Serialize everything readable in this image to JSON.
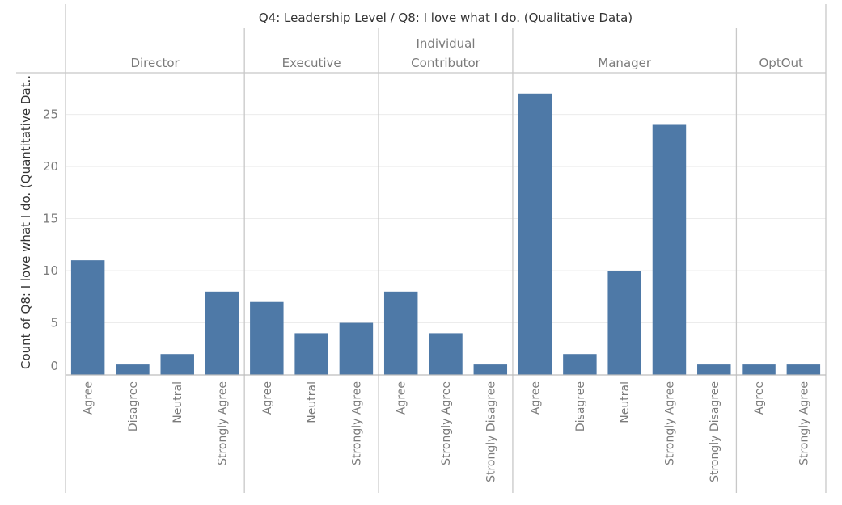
{
  "chart_data": {
    "type": "bar",
    "title": "Q4: Leadership Level  /  Q8: I love what I do. (Qualitative Data)",
    "ylabel": "Count of Q8: I love what I do. (Quantitative Dat..",
    "xlabel": "",
    "ylim": [
      0,
      29
    ],
    "yticks": [
      0,
      5,
      10,
      15,
      20,
      25
    ],
    "grid": true,
    "bar_color": "#4e79a7",
    "panes": [
      {
        "name": "Director",
        "header_lines": [
          "Director"
        ],
        "categories": [
          "Agree",
          "Disagree",
          "Neutral",
          "Strongly Agree"
        ],
        "values": [
          11,
          1,
          2,
          8
        ]
      },
      {
        "name": "Executive",
        "header_lines": [
          "Executive"
        ],
        "categories": [
          "Agree",
          "Neutral",
          "Strongly Agree"
        ],
        "values": [
          7,
          4,
          5
        ]
      },
      {
        "name": "Individual Contributor",
        "header_lines": [
          "Individual",
          "Contributor"
        ],
        "categories": [
          "Agree",
          "Strongly Agree",
          "Strongly Disagree"
        ],
        "values": [
          8,
          4,
          1
        ]
      },
      {
        "name": "Manager",
        "header_lines": [
          "Manager"
        ],
        "categories": [
          "Agree",
          "Disagree",
          "Neutral",
          "Strongly Agree",
          "Strongly Disagree"
        ],
        "values": [
          27,
          2,
          10,
          24,
          1
        ]
      },
      {
        "name": "OptOut",
        "header_lines": [
          "OptOut"
        ],
        "categories": [
          "Agree",
          "Strongly Agree"
        ],
        "values": [
          1,
          1
        ]
      }
    ]
  }
}
